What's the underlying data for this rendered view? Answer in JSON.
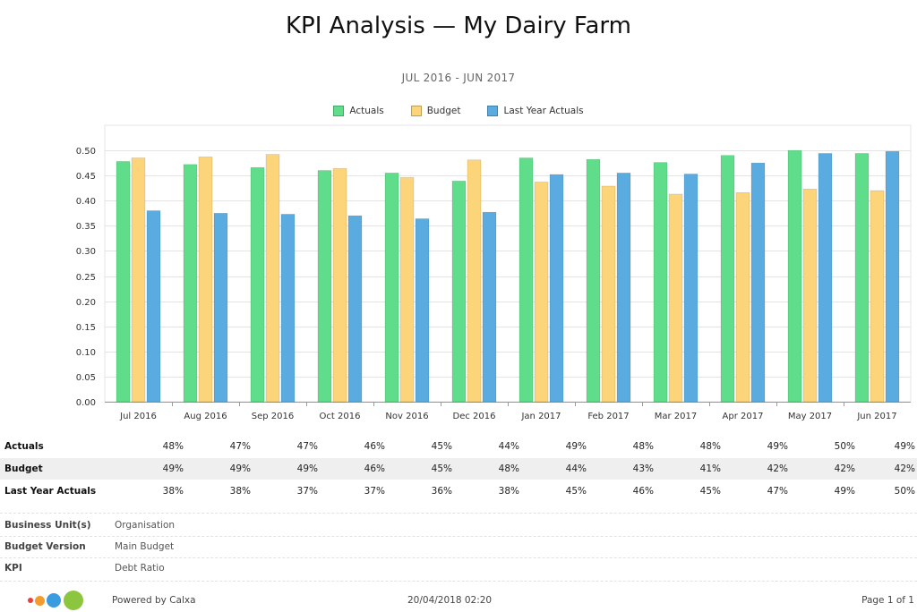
{
  "title": "KPI Analysis — My Dairy Farm",
  "subtitle": "JUL 2016 - JUN 2017",
  "colors": {
    "actuals": "#5fdd8a",
    "budget": "#fcd57a",
    "last_year": "#5aace0"
  },
  "chart_data": {
    "type": "bar",
    "categories": [
      "Jul 2016",
      "Aug 2016",
      "Sep 2016",
      "Oct 2016",
      "Nov 2016",
      "Dec 2016",
      "Jan 2017",
      "Feb 2017",
      "Mar 2017",
      "Apr 2017",
      "May 2017",
      "Jun 2017"
    ],
    "series": [
      {
        "name": "Actuals",
        "values": [
          0.478,
          0.472,
          0.466,
          0.46,
          0.455,
          0.439,
          0.485,
          0.482,
          0.476,
          0.49,
          0.5,
          0.494
        ]
      },
      {
        "name": "Budget",
        "values": [
          0.485,
          0.487,
          0.492,
          0.464,
          0.446,
          0.481,
          0.437,
          0.429,
          0.413,
          0.416,
          0.423,
          0.42
        ]
      },
      {
        "name": "Last Year Actuals",
        "values": [
          0.38,
          0.375,
          0.373,
          0.37,
          0.364,
          0.377,
          0.452,
          0.455,
          0.453,
          0.475,
          0.494,
          0.498
        ]
      }
    ],
    "ylim": [
      0,
      0.55
    ],
    "yticks": [
      "0.00",
      "0.05",
      "0.10",
      "0.15",
      "0.20",
      "0.25",
      "0.30",
      "0.35",
      "0.40",
      "0.45",
      "0.50"
    ],
    "grid": true,
    "legend_position": "top-center"
  },
  "table": {
    "rows": [
      {
        "label": "Actuals",
        "values": [
          "48%",
          "47%",
          "47%",
          "46%",
          "45%",
          "44%",
          "49%",
          "48%",
          "48%",
          "49%",
          "50%",
          "49%"
        ]
      },
      {
        "label": "Budget",
        "values": [
          "49%",
          "49%",
          "49%",
          "46%",
          "45%",
          "48%",
          "44%",
          "43%",
          "41%",
          "42%",
          "42%",
          "42%"
        ]
      },
      {
        "label": "Last Year Actuals",
        "values": [
          "38%",
          "38%",
          "37%",
          "37%",
          "36%",
          "38%",
          "45%",
          "46%",
          "45%",
          "47%",
          "49%",
          "50%"
        ]
      }
    ]
  },
  "meta": [
    {
      "label": "Business Unit(s)",
      "value": "Organisation"
    },
    {
      "label": "Budget Version",
      "value": "Main Budget"
    },
    {
      "label": "KPI",
      "value": "Debt Ratio"
    }
  ],
  "footer": {
    "powered_by": "Powered by Calxa",
    "timestamp": "20/04/2018 02:20",
    "page": "Page 1 of 1"
  }
}
